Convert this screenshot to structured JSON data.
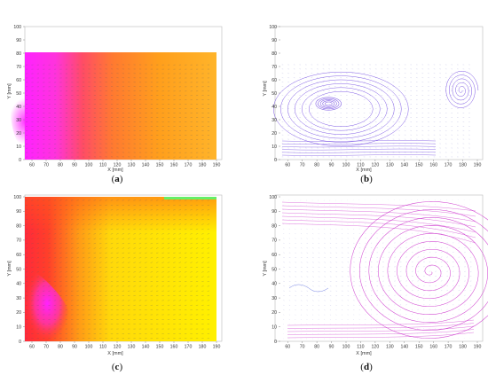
{
  "figure": {
    "panels": [
      {
        "id": "a",
        "label": "a",
        "kind": "contour",
        "xlabel": "X [mm]",
        "ylabel": "Y [mm]",
        "xticks": [
          "60",
          "70",
          "80",
          "90",
          "100",
          "110",
          "120",
          "130",
          "140",
          "150",
          "160",
          "170",
          "180",
          "190"
        ],
        "yticks": [
          "0",
          "10",
          "20",
          "30",
          "40",
          "50",
          "60",
          "70",
          "80",
          "90",
          "100"
        ],
        "field_top_mm": 74
      },
      {
        "id": "b",
        "label": "b",
        "kind": "streamline",
        "xlabel": "X [mm]",
        "ylabel": "Y [mm]",
        "xticks": [
          "60",
          "70",
          "80",
          "90",
          "100",
          "110",
          "120",
          "130",
          "140",
          "150",
          "160",
          "170",
          "180",
          "190"
        ],
        "yticks": [
          "0",
          "10",
          "20",
          "30",
          "40",
          "50",
          "60",
          "70",
          "80",
          "90",
          "100"
        ],
        "line_color": "#6a3fe0",
        "vortices": [
          {
            "cx_mm": 88,
            "cy_mm": 42
          },
          {
            "cx_mm": 179,
            "cy_mm": 52
          }
        ]
      },
      {
        "id": "c",
        "label": "c",
        "kind": "contour",
        "xlabel": "X [mm]",
        "ylabel": "Y [mm]",
        "xticks": [
          "60",
          "70",
          "80",
          "90",
          "100",
          "110",
          "120",
          "130",
          "140",
          "150",
          "160",
          "170",
          "180",
          "190"
        ],
        "yticks": [
          "0",
          "10",
          "20",
          "30",
          "40",
          "50",
          "60",
          "70",
          "80",
          "90",
          "100"
        ],
        "field_top_mm": 100
      },
      {
        "id": "d",
        "label": "d",
        "kind": "streamline",
        "xlabel": "X [mm]",
        "ylabel": "Y [mm]",
        "xticks": [
          "60",
          "70",
          "80",
          "90",
          "100",
          "110",
          "120",
          "130",
          "140",
          "150",
          "160",
          "170",
          "180",
          "190"
        ],
        "yticks": [
          "0",
          "10",
          "20",
          "30",
          "40",
          "50",
          "60",
          "70",
          "80",
          "90",
          "100"
        ],
        "line_color": "#cc33cc",
        "vortices": [
          {
            "cx_mm": 158,
            "cy_mm": 48
          }
        ]
      }
    ],
    "colors": {
      "hot": "#ff22ff",
      "mid": "#ff3a3a",
      "warm": "#ff9a1a",
      "cool": "#ffe500",
      "vector": "#555566",
      "axis": "#888888",
      "tick_text": "#333333"
    }
  }
}
